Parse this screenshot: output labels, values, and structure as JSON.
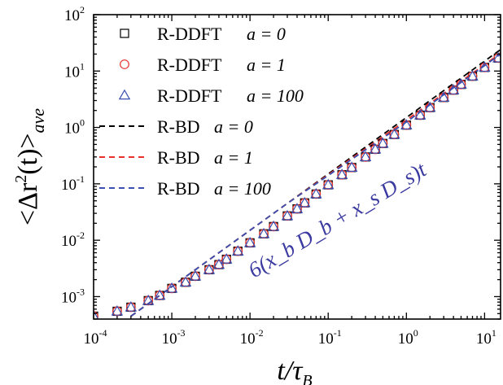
{
  "chart_data": {
    "type": "scatter",
    "xscale": "log",
    "yscale": "log",
    "xlim": [
      0.0001,
      16
    ],
    "ylim": [
      0.0004,
      100
    ],
    "xticks": [
      {
        "base": "10",
        "exp": "-4"
      },
      {
        "base": "10",
        "exp": "-3"
      },
      {
        "base": "10",
        "exp": "-2"
      },
      {
        "base": "10",
        "exp": "-1"
      },
      {
        "base": "10",
        "exp": "0"
      },
      {
        "base": "10",
        "exp": "1"
      }
    ],
    "yticks": [
      {
        "base": "10",
        "exp": "-3"
      },
      {
        "base": "10",
        "exp": "-2"
      },
      {
        "base": "10",
        "exp": "-1"
      },
      {
        "base": "10",
        "exp": "0"
      },
      {
        "base": "10",
        "exp": "1"
      },
      {
        "base": "10",
        "exp": "2"
      }
    ],
    "xlabel": "t/τ_B",
    "ylabel": "<Δr²(t)>_ave",
    "annotation": "6(x_b D_b + x_s D_s)t",
    "legend_position": "top-left",
    "x": [
      0.0001,
      0.0002,
      0.0003,
      0.0005,
      0.0007,
      0.001,
      0.0015,
      0.002,
      0.003,
      0.004,
      0.005,
      0.007,
      0.01,
      0.015,
      0.02,
      0.03,
      0.04,
      0.05,
      0.07,
      0.1,
      0.15,
      0.2,
      0.3,
      0.4,
      0.5,
      0.7,
      1.0,
      1.5,
      2.0,
      3.0,
      4.0,
      5.0,
      7.0,
      10.0,
      15.0
    ],
    "series": [
      {
        "name": "R-DDFT  a = 0",
        "marker": "square",
        "color": "#000000",
        "values": [
          0.00045,
          0.00055,
          0.00065,
          0.00085,
          0.00105,
          0.0014,
          0.0018,
          0.0023,
          0.003,
          0.0037,
          0.0046,
          0.0064,
          0.009,
          0.013,
          0.0175,
          0.027,
          0.036,
          0.046,
          0.066,
          0.096,
          0.145,
          0.195,
          0.3,
          0.41,
          0.52,
          0.75,
          1.1,
          1.65,
          2.25,
          3.4,
          4.6,
          5.8,
          8.1,
          11.6,
          17.0
        ]
      },
      {
        "name": "R-DDFT  a = 1",
        "marker": "circle",
        "color": "#e8312a",
        "values": [
          0.00045,
          0.00055,
          0.00065,
          0.00085,
          0.00105,
          0.0014,
          0.0018,
          0.0023,
          0.003,
          0.0037,
          0.0046,
          0.0064,
          0.009,
          0.013,
          0.0175,
          0.027,
          0.036,
          0.046,
          0.066,
          0.096,
          0.145,
          0.195,
          0.3,
          0.41,
          0.52,
          0.75,
          1.1,
          1.65,
          2.25,
          3.4,
          4.6,
          5.8,
          8.1,
          11.6,
          17.0
        ]
      },
      {
        "name": "R-DDFT  a = 100",
        "marker": "triangle",
        "color": "#3a4fb0",
        "values": [
          0.00045,
          0.00055,
          0.00065,
          0.00085,
          0.00105,
          0.0014,
          0.0018,
          0.0023,
          0.003,
          0.0037,
          0.0046,
          0.0064,
          0.009,
          0.013,
          0.0175,
          0.027,
          0.036,
          0.046,
          0.066,
          0.096,
          0.145,
          0.195,
          0.3,
          0.41,
          0.52,
          0.75,
          1.1,
          1.65,
          2.25,
          3.4,
          4.6,
          5.8,
          8.1,
          11.6,
          17.0
        ]
      }
    ],
    "lines": [
      {
        "name": "R-BD  a = 0",
        "style": "dashed",
        "color": "#000000",
        "x": [
          0.0003,
          0.001,
          0.003,
          0.01,
          0.03,
          0.1,
          0.3,
          1,
          3,
          10,
          16
        ],
        "y": [
          0.00045,
          0.0015,
          0.0045,
          0.015,
          0.045,
          0.15,
          0.45,
          1.5,
          4.5,
          15,
          24
        ]
      },
      {
        "name": "R-BD  a = 1",
        "style": "dashed",
        "color": "#e8312a",
        "x": [
          0.0003,
          0.001,
          0.003,
          0.01,
          0.03,
          0.1,
          0.3,
          1,
          3,
          10,
          16
        ],
        "y": [
          0.00045,
          0.0015,
          0.0045,
          0.015,
          0.045,
          0.145,
          0.42,
          1.35,
          4.0,
          13,
          21
        ]
      },
      {
        "name": "R-BD  a = 100",
        "style": "dashed",
        "color": "#3a4fb0",
        "x": [
          0.0003,
          0.001,
          0.003,
          0.01,
          0.03,
          0.1,
          0.3,
          1,
          3,
          10,
          16
        ],
        "y": [
          0.00045,
          0.0015,
          0.0045,
          0.015,
          0.045,
          0.14,
          0.4,
          1.25,
          3.8,
          12.5,
          20
        ]
      }
    ],
    "legend": [
      {
        "kind": "marker",
        "marker": "square",
        "color": "#000000",
        "label": "R-DDFT",
        "param": "a = 0"
      },
      {
        "kind": "marker",
        "marker": "circle",
        "color": "#e8312a",
        "label": "R-DDFT",
        "param": "a = 1"
      },
      {
        "kind": "marker",
        "marker": "triangle",
        "color": "#3a4fb0",
        "label": "R-DDFT",
        "param": "a = 100"
      },
      {
        "kind": "line",
        "color": "#000000",
        "label": "R-BD",
        "param": "a = 0"
      },
      {
        "kind": "line",
        "color": "#e8312a",
        "label": "R-BD",
        "param": "a = 1"
      },
      {
        "kind": "line",
        "color": "#3a4fb0",
        "label": "R-BD",
        "param": "a = 100"
      }
    ]
  }
}
